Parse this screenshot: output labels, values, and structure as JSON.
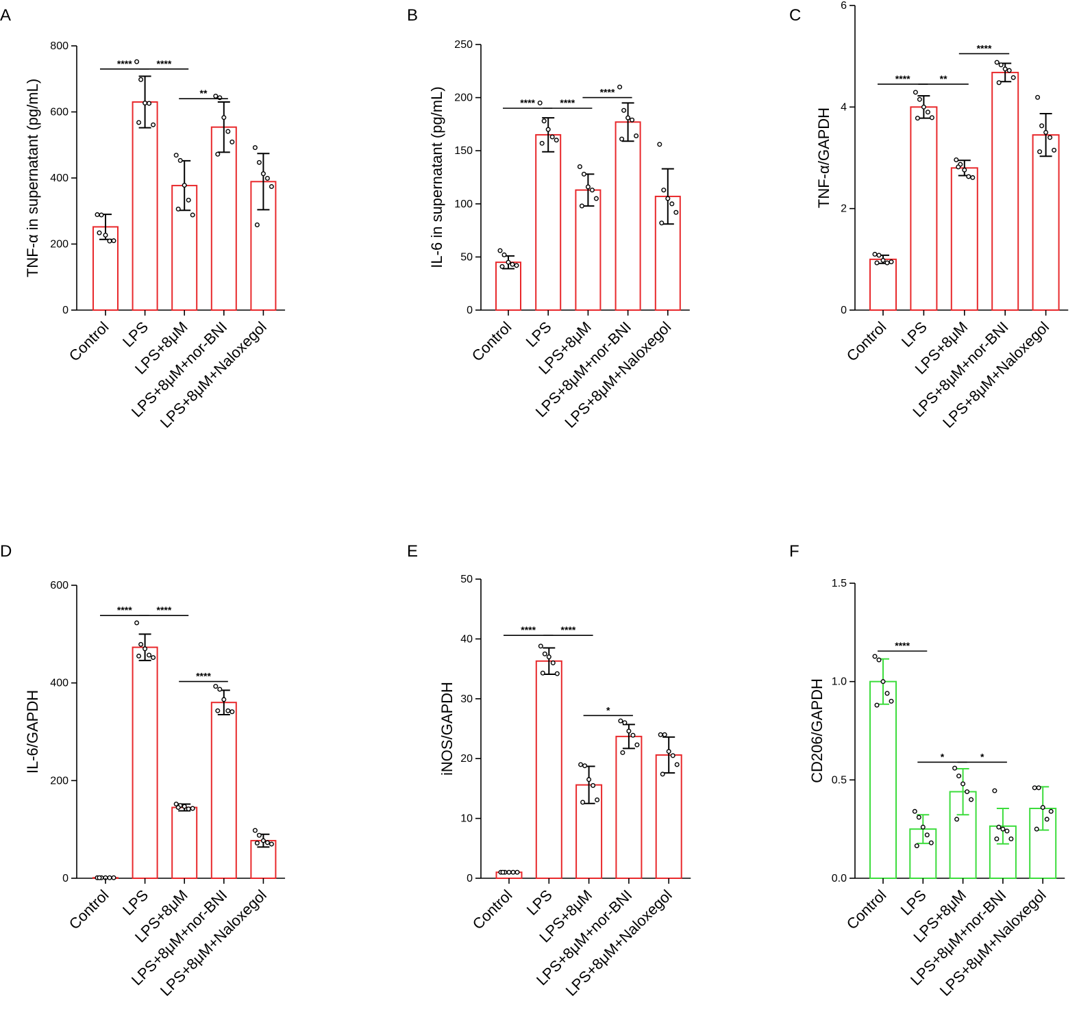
{
  "figure": {
    "category_labels": [
      "Control",
      "LPS",
      "LPS+8μM",
      "LPS+8μM+nor-BNI",
      "LPS+8μM+Naloxegol"
    ]
  },
  "chart_data": [
    {
      "panel": "A",
      "type": "bar",
      "color": "#e8282b",
      "ylabel": "TNF-α in supernatant (pg/mL)",
      "ylim": [
        0,
        800
      ],
      "yticks": [
        0,
        200,
        400,
        600,
        800
      ],
      "categories": [
        "Control",
        "LPS",
        "LPS+8μM",
        "LPS+8μM+nor-BNI",
        "LPS+8μM+Naloxegol"
      ],
      "values": [
        252,
        630,
        377,
        554,
        389
      ],
      "errors": [
        38,
        78,
        75,
        76,
        85
      ],
      "points": [
        [
          289,
          288,
          227,
          209,
          210,
          234
        ],
        [
          752,
          698,
          627,
          626,
          561,
          568
        ],
        [
          469,
          453,
          378,
          333,
          288,
          306
        ],
        [
          648,
          643,
          583,
          541,
          509,
          472
        ],
        [
          492,
          447,
          413,
          399,
          374,
          258
        ]
      ],
      "significance": [
        {
          "from": 0,
          "to": 1,
          "label": "****",
          "y": 730
        },
        {
          "from": 1,
          "to": 2,
          "label": "****",
          "y": 730
        },
        {
          "from": 2,
          "to": 3,
          "label": "**",
          "y": 640
        }
      ]
    },
    {
      "panel": "B",
      "type": "bar",
      "color": "#e8282b",
      "ylabel": "IL-6 in supernatant (pg/mL)",
      "ylim": [
        0,
        250
      ],
      "yticks": [
        0,
        50,
        100,
        150,
        200,
        250
      ],
      "categories": [
        "Control",
        "LPS",
        "LPS+8μM",
        "LPS+8μM+nor-BNI",
        "LPS+8μM+Naloxegol"
      ],
      "values": [
        45,
        165,
        113,
        177,
        107
      ],
      "errors": [
        6,
        16,
        15,
        18,
        26
      ],
      "points": [
        [
          56,
          52,
          45,
          43,
          42,
          41
        ],
        [
          195,
          178,
          170,
          163,
          160,
          157
        ],
        [
          135,
          128,
          116,
          113,
          105,
          98
        ],
        [
          210,
          188,
          181,
          179,
          164,
          161
        ],
        [
          156,
          113,
          105,
          100,
          92,
          82
        ]
      ],
      "significance": [
        {
          "from": 0,
          "to": 1,
          "label": "****",
          "y": 190
        },
        {
          "from": 1,
          "to": 2,
          "label": "****",
          "y": 190
        },
        {
          "from": 2,
          "to": 3,
          "label": "****",
          "y": 200
        }
      ]
    },
    {
      "panel": "C",
      "type": "bar",
      "color": "#e8282b",
      "ylabel": "TNF-α/GAPDH",
      "ylim": [
        0,
        6
      ],
      "yticks": [
        0,
        2,
        4,
        6
      ],
      "categories": [
        "Control",
        "LPS",
        "LPS+8μM",
        "LPS+8μM+nor-BNI",
        "LPS+8μM+Naloxegol"
      ],
      "values": [
        1.0,
        4.0,
        2.8,
        4.68,
        3.45
      ],
      "errors": [
        0.08,
        0.22,
        0.15,
        0.18,
        0.42
      ],
      "points": [
        [
          1.1,
          1.08,
          0.98,
          0.93,
          0.95,
          0.93
        ],
        [
          4.29,
          4.15,
          4.0,
          3.9,
          3.79,
          3.78
        ],
        [
          2.96,
          2.87,
          2.76,
          2.63,
          2.61,
          2.82
        ],
        [
          4.88,
          4.83,
          4.75,
          4.72,
          4.58,
          4.48
        ],
        [
          4.19,
          3.63,
          3.5,
          3.4,
          3.15,
          3.12
        ]
      ],
      "significance": [
        {
          "from": 0,
          "to": 1,
          "label": "****",
          "y": 4.45
        },
        {
          "from": 1,
          "to": 2,
          "label": "**",
          "y": 4.45
        },
        {
          "from": 2,
          "to": 3,
          "label": "****",
          "y": 5.05
        }
      ]
    },
    {
      "panel": "D",
      "type": "bar",
      "color": "#e8282b",
      "ylabel": "IL-6/GAPDH",
      "ylim": [
        0,
        600
      ],
      "yticks": [
        0,
        200,
        400,
        600
      ],
      "categories": [
        "Control",
        "LPS",
        "LPS+8μM",
        "LPS+8μM+nor-BNI",
        "LPS+8μM+Naloxegol"
      ],
      "values": [
        1,
        473,
        145,
        360,
        77
      ],
      "errors": [
        0.5,
        27,
        7,
        25,
        13
      ],
      "points": [
        [
          1,
          1,
          1,
          1,
          1,
          1
        ],
        [
          523,
          479,
          470,
          457,
          452,
          455
        ],
        [
          152,
          149,
          147,
          142,
          143,
          145
        ],
        [
          393,
          387,
          366,
          343,
          341,
          343
        ],
        [
          98,
          88,
          77,
          73,
          70,
          72
        ]
      ],
      "significance": [
        {
          "from": 0,
          "to": 1,
          "label": "****",
          "y": 538
        },
        {
          "from": 1,
          "to": 2,
          "label": "****",
          "y": 538
        },
        {
          "from": 2,
          "to": 3,
          "label": "****",
          "y": 403
        }
      ]
    },
    {
      "panel": "E",
      "type": "bar",
      "color": "#e8282b",
      "ylabel": "iNOS/GAPDH",
      "ylim": [
        0,
        50
      ],
      "yticks": [
        0,
        10,
        20,
        30,
        40,
        50
      ],
      "categories": [
        "Control",
        "LPS",
        "LPS+8μM",
        "LPS+8μM+nor-BNI",
        "LPS+8μM+Naloxegol"
      ],
      "values": [
        1,
        36.3,
        15.6,
        23.7,
        20.6
      ],
      "errors": [
        0.1,
        2.2,
        3.1,
        2.0,
        3.0
      ],
      "points": [
        [
          1,
          1,
          1,
          1,
          1,
          1
        ],
        [
          38.8,
          37.5,
          37.0,
          36.0,
          34.2,
          34.3
        ],
        [
          19.0,
          18.8,
          16.5,
          15.5,
          13.1,
          12.7
        ],
        [
          26.3,
          26.0,
          24.6,
          23.9,
          22.3,
          21.0
        ],
        [
          24.0,
          24.0,
          21.2,
          20.5,
          19.0,
          17.4
        ]
      ],
      "significance": [
        {
          "from": 0,
          "to": 1,
          "label": "****",
          "y": 40.6
        },
        {
          "from": 1,
          "to": 2,
          "label": "****",
          "y": 40.6
        },
        {
          "from": 2,
          "to": 3,
          "label": "*",
          "y": 27.2
        }
      ]
    },
    {
      "panel": "F",
      "type": "bar",
      "color": "#3cdc3c",
      "ylabel": "CD206/GAPDH",
      "ylim": [
        0,
        1.5
      ],
      "yticks": [
        0.0,
        0.5,
        1.0,
        1.5
      ],
      "categories": [
        "Control",
        "LPS",
        "LPS+8μM",
        "LPS+8μM+nor-BNI",
        "LPS+8μM+Naloxegol"
      ],
      "values": [
        1.0,
        0.25,
        0.44,
        0.265,
        0.355
      ],
      "errors": [
        0.115,
        0.073,
        0.117,
        0.09,
        0.11
      ],
      "points": [
        [
          1.128,
          1.11,
          1.0,
          0.94,
          0.9,
          0.88
        ],
        [
          0.34,
          0.31,
          0.26,
          0.22,
          0.18,
          0.165
        ],
        [
          0.56,
          0.52,
          0.48,
          0.44,
          0.4,
          0.3
        ],
        [
          0.445,
          0.26,
          0.25,
          0.24,
          0.2,
          0.2
        ],
        [
          0.46,
          0.46,
          0.36,
          0.3,
          0.34,
          0.25
        ]
      ],
      "significance": [
        {
          "from": 0,
          "to": 1,
          "label": "****",
          "y": 1.155
        },
        {
          "from": 1,
          "to": 2,
          "label": "*",
          "y": 0.59
        },
        {
          "from": 2,
          "to": 3,
          "label": "*",
          "y": 0.59
        }
      ]
    }
  ]
}
